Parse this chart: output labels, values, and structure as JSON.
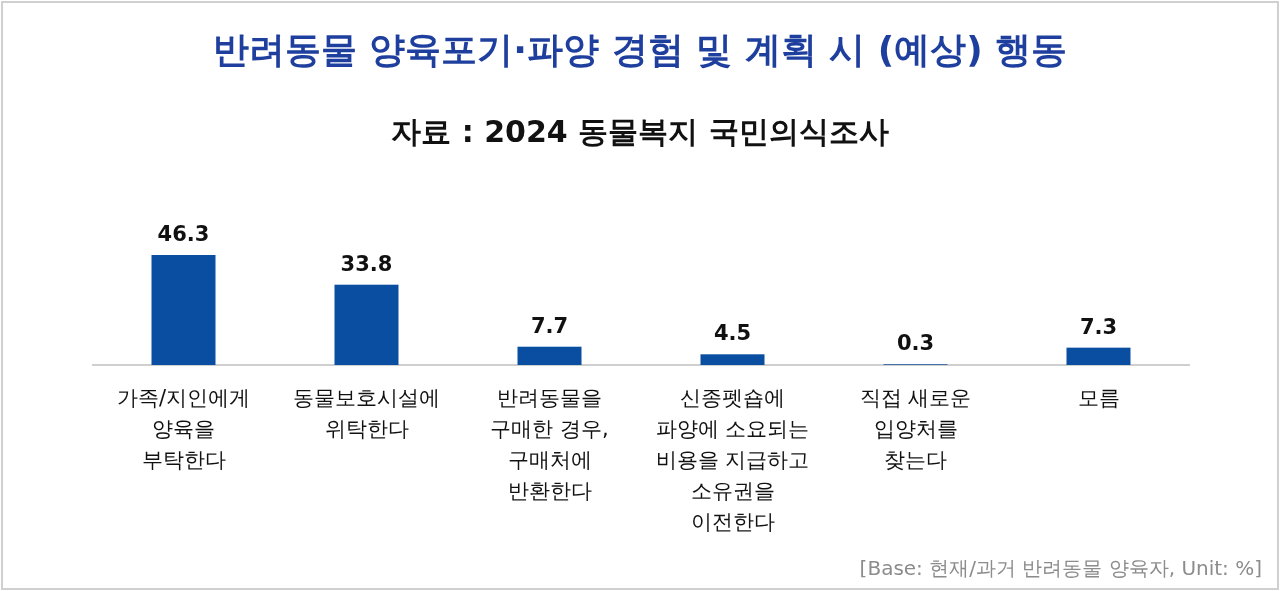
{
  "chart_data": {
    "type": "bar",
    "title": "반려동물 양육포기·파양 경험 및 계획 시 (예상) 행동",
    "subtitle": "자료 : 2024 동물복지 국민의식조사",
    "categories": [
      "가족/지인에게\n양육을\n부탁한다",
      "동물보호시설에\n위탁한다",
      "반려동물을\n구매한 경우,\n구매처에\n반환한다",
      "신종펫숍에\n파양에 소요되는\n비용을 지급하고\n소유권을\n이전한다",
      "직접 새로운\n입양처를\n찾는다",
      "모름"
    ],
    "values": [
      46.3,
      33.8,
      7.7,
      4.5,
      0.3,
      7.3
    ],
    "color": "#0a4ea2",
    "data_labels": true,
    "annotations": [
      "[Base: 현재/과거 반려동물 양육자, Unit: %]"
    ]
  }
}
